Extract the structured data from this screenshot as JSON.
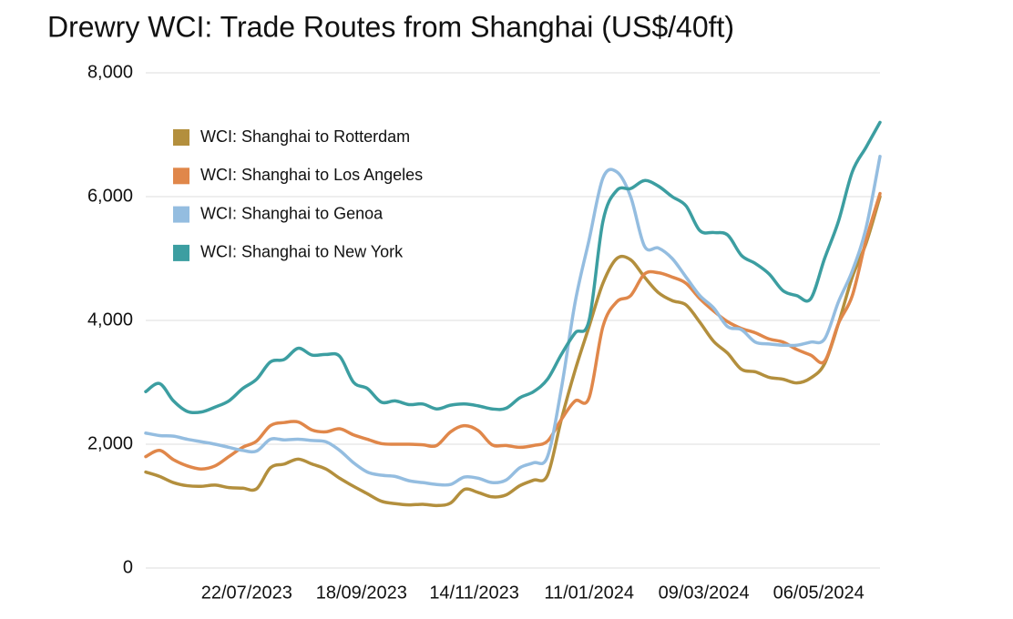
{
  "chart_data": {
    "type": "line",
    "title": "Drewry WCI: Trade Routes from Shanghai (US$/40ft)",
    "x": [
      "01/06/2023",
      "08/06/2023",
      "15/06/2023",
      "22/06/2023",
      "29/06/2023",
      "06/07/2023",
      "13/07/2023",
      "20/07/2023",
      "27/07/2023",
      "03/08/2023",
      "10/08/2023",
      "17/08/2023",
      "24/08/2023",
      "31/08/2023",
      "07/09/2023",
      "14/09/2023",
      "21/09/2023",
      "28/09/2023",
      "05/10/2023",
      "12/10/2023",
      "19/10/2023",
      "26/10/2023",
      "02/11/2023",
      "09/11/2023",
      "16/11/2023",
      "23/11/2023",
      "30/11/2023",
      "07/12/2023",
      "14/12/2023",
      "21/12/2023",
      "28/12/2023",
      "04/01/2024",
      "11/01/2024",
      "18/01/2024",
      "25/01/2024",
      "01/02/2024",
      "08/02/2024",
      "15/02/2024",
      "22/02/2024",
      "29/02/2024",
      "07/03/2024",
      "14/03/2024",
      "21/03/2024",
      "28/03/2024",
      "04/04/2024",
      "11/04/2024",
      "18/04/2024",
      "25/04/2024",
      "02/05/2024",
      "09/05/2024",
      "16/05/2024",
      "23/05/2024",
      "30/05/2024",
      "06/06/2024"
    ],
    "xlim": [
      "01/06/2023",
      "06/06/2024"
    ],
    "xticks": [
      "22/07/2023",
      "18/09/2023",
      "14/11/2023",
      "11/01/2024",
      "09/03/2024",
      "06/05/2024"
    ],
    "ylim": [
      0,
      8000
    ],
    "yticks": [
      {
        "value": 0,
        "label": "0"
      },
      {
        "value": 2000,
        "label": "2,000"
      },
      {
        "value": 4000,
        "label": "4,000"
      },
      {
        "value": 6000,
        "label": "6,000"
      },
      {
        "value": 8000,
        "label": "8,000"
      }
    ],
    "grid": true,
    "legend": "upper left",
    "series": [
      {
        "name": "WCI: Shanghai to Rotterdam",
        "color": "#b38f3d",
        "values": [
          1550,
          1480,
          1380,
          1330,
          1320,
          1340,
          1300,
          1290,
          1280,
          1620,
          1680,
          1760,
          1680,
          1600,
          1450,
          1320,
          1200,
          1080,
          1040,
          1020,
          1030,
          1010,
          1050,
          1270,
          1220,
          1150,
          1180,
          1330,
          1420,
          1500,
          2400,
          3200,
          3900,
          4600,
          5000,
          4980,
          4700,
          4450,
          4320,
          4250,
          3970,
          3660,
          3470,
          3210,
          3170,
          3080,
          3050,
          2990,
          3070,
          3300,
          3950,
          4700,
          5250,
          6000
        ]
      },
      {
        "name": "WCI: Shanghai to Los Angeles",
        "color": "#e0874a",
        "values": [
          1800,
          1900,
          1750,
          1650,
          1600,
          1650,
          1800,
          1950,
          2050,
          2300,
          2350,
          2360,
          2230,
          2200,
          2250,
          2150,
          2080,
          2010,
          2000,
          2000,
          1990,
          1980,
          2200,
          2300,
          2220,
          1990,
          1980,
          1950,
          1980,
          2050,
          2400,
          2700,
          2750,
          3900,
          4300,
          4400,
          4750,
          4770,
          4700,
          4600,
          4350,
          4150,
          3980,
          3870,
          3800,
          3700,
          3650,
          3530,
          3440,
          3340,
          3950,
          4400,
          5300,
          6050
        ]
      },
      {
        "name": "WCI: Shanghai to Genoa",
        "color": "#94bde0",
        "values": [
          2180,
          2140,
          2130,
          2080,
          2040,
          2000,
          1950,
          1900,
          1890,
          2080,
          2070,
          2080,
          2060,
          2040,
          1900,
          1700,
          1550,
          1500,
          1480,
          1410,
          1380,
          1350,
          1350,
          1470,
          1450,
          1380,
          1420,
          1620,
          1700,
          1800,
          2900,
          4300,
          5300,
          6300,
          6400,
          6000,
          5200,
          5170,
          5000,
          4700,
          4400,
          4200,
          3900,
          3850,
          3650,
          3620,
          3600,
          3600,
          3650,
          3700,
          4300,
          4800,
          5500,
          6650
        ]
      },
      {
        "name": "WCI: Shanghai to New York",
        "color": "#3c9ea1",
        "values": [
          2850,
          2980,
          2700,
          2530,
          2520,
          2600,
          2700,
          2900,
          3050,
          3330,
          3370,
          3550,
          3440,
          3450,
          3420,
          3000,
          2900,
          2680,
          2700,
          2640,
          2650,
          2570,
          2630,
          2650,
          2620,
          2570,
          2580,
          2750,
          2850,
          3050,
          3450,
          3800,
          4000,
          5600,
          6100,
          6130,
          6260,
          6170,
          6000,
          5850,
          5450,
          5420,
          5380,
          5050,
          4920,
          4750,
          4480,
          4400,
          4350,
          5000,
          5600,
          6400,
          6800,
          7200
        ]
      }
    ]
  }
}
